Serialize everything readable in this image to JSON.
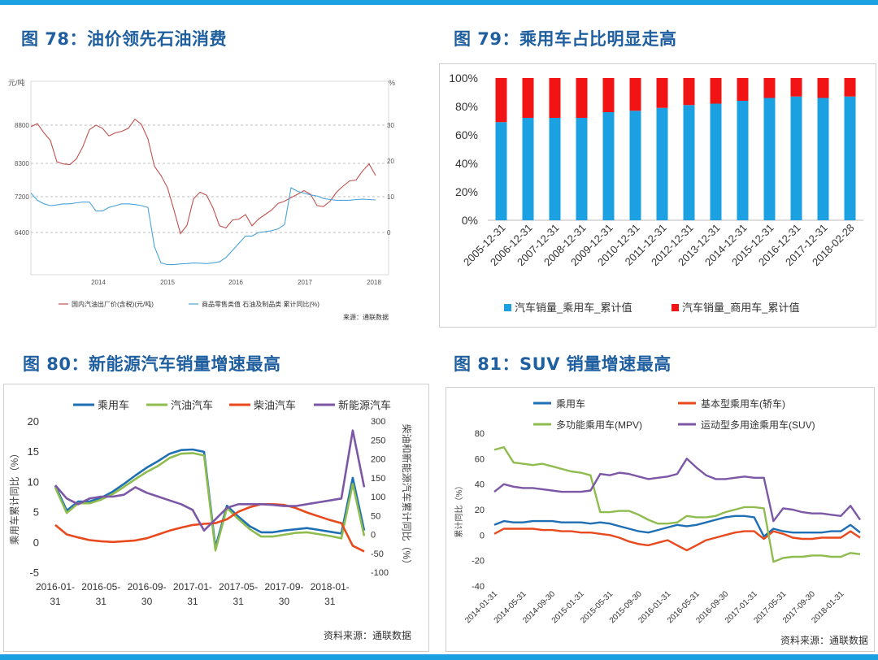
{
  "colors": {
    "accent": "#1ba1e2",
    "title": "#1f5fa0"
  },
  "fig78": {
    "title": "图 78：油价领先石油消费",
    "unit_left": "元/吨",
    "unit_right": "%",
    "source": "来源：通联数据",
    "chart_data": {
      "type": "line",
      "x_ticks": [
        "2014",
        "2015",
        "2016",
        "2017",
        "2018"
      ],
      "y_left_ticks": [
        "8800",
        "8300",
        "7200",
        "6400"
      ],
      "y_right_ticks": [
        "30",
        "20",
        "10",
        "0"
      ],
      "series": [
        {
          "name": "国内汽油出厂价(含税)(元/吨)",
          "color": "#c0504d",
          "axis": "left",
          "values": [
            8780,
            8820,
            8700,
            8600,
            8320,
            8280,
            8260,
            8360,
            8520,
            8740,
            8800,
            8760,
            8660,
            8700,
            8720,
            8760,
            8880,
            8810,
            8620,
            8200,
            7900,
            7500,
            6900,
            6380,
            6560,
            7150,
            7350,
            7250,
            6950,
            6550,
            6500,
            6680,
            6700,
            6800,
            6550,
            6700,
            6800,
            6900,
            7050,
            7100,
            7180,
            7280,
            7400,
            7280,
            7000,
            6980,
            7100,
            7350,
            7550,
            7720,
            7750,
            8050,
            8280,
            7900
          ]
        },
        {
          "name": "商品零售类值 石油及制品类 累计同比(%)",
          "color": "#4aa3d8",
          "axis": "right",
          "values": [
            11,
            9,
            8,
            7.5,
            7.7,
            8,
            8,
            8.3,
            8.5,
            8.5,
            6,
            6,
            7,
            7.5,
            8,
            8,
            7.8,
            7.5,
            7,
            -4,
            -8.5,
            -9,
            -9,
            -8.8,
            -8.7,
            -8.5,
            -8.6,
            -8.7,
            -8.5,
            -8.2,
            -7,
            -5,
            -3,
            -1,
            -1,
            0,
            0.2,
            0.5,
            1,
            2.2,
            12.5,
            11.5,
            11,
            10.5,
            10.2,
            9.5,
            9.2,
            9,
            9,
            9,
            9.2,
            9.3,
            9.2,
            9.1
          ]
        }
      ]
    }
  },
  "fig79": {
    "title": "图 79：乘用车占比明显走高",
    "chart_data": {
      "type": "bar",
      "stacked": true,
      "categories": [
        "2005-12-31",
        "2006-12-31",
        "2007-12-31",
        "2008-12-31",
        "2009-12-31",
        "2010-12-31",
        "2011-12-31",
        "2012-12-31",
        "2013-12-31",
        "2014-12-31",
        "2015-12-31",
        "2016-12-31",
        "2017-12-31",
        "2018-02-28"
      ],
      "y_ticks": [
        "100%",
        "80%",
        "60%",
        "40%",
        "20%",
        "0%"
      ],
      "ylim": [
        0,
        100
      ],
      "series": [
        {
          "name": "汽车销量_乘用车_累计值",
          "color": "#1ba1e2",
          "values": [
            69,
            72,
            72,
            72,
            76,
            77,
            79,
            81,
            82,
            84,
            86,
            87,
            86,
            87
          ]
        },
        {
          "name": "汽车销量_商用车_累计值",
          "color": "#f21414",
          "values": [
            31,
            28,
            28,
            28,
            24,
            23,
            21,
            19,
            18,
            16,
            14,
            13,
            14,
            13
          ]
        }
      ]
    }
  },
  "fig80": {
    "title": "图 80：新能源汽车销量增速最高",
    "ylabel_left": "乘用车累计同比（%）",
    "ylabel_right": "柴油和新能源汽车累计同比（%）",
    "source": "资料来源：通联数据",
    "chart_data": {
      "type": "line",
      "x_ticks": [
        [
          "2016-01-",
          "31"
        ],
        [
          "2016-05-",
          "31"
        ],
        [
          "2016-09-",
          "30"
        ],
        [
          "2017-01-",
          "31"
        ],
        [
          "2017-05-",
          "31"
        ],
        [
          "2017-09-",
          "30"
        ],
        [
          "2018-01-",
          "31"
        ]
      ],
      "y_left_ticks": [
        "20",
        "15",
        "10",
        "5",
        "0",
        "-5"
      ],
      "y_right_ticks": [
        "300",
        "250",
        "200",
        "150",
        "100",
        "50",
        "0",
        "-50",
        "-100"
      ],
      "ylim_left": [
        -5,
        20
      ],
      "ylim_right": [
        -100,
        300
      ],
      "series": [
        {
          "name": "乘用车",
          "color": "#1f6fb5",
          "axis": "left",
          "values": [
            9.3,
            5.2,
            6.7,
            6.7,
            7.3,
            8.3,
            9.6,
            11.0,
            12.3,
            13.4,
            14.6,
            15.2,
            15.3,
            14.9,
            -0.9,
            6.0,
            4.2,
            2.6,
            1.6,
            1.6,
            1.9,
            2.1,
            2.3,
            2.0,
            1.7,
            1.4,
            10.6,
            1.9
          ]
        },
        {
          "name": "汽油汽车",
          "color": "#8fbc4f",
          "axis": "left",
          "values": [
            9.0,
            4.8,
            6.4,
            6.4,
            7.0,
            7.9,
            9.1,
            10.4,
            11.6,
            12.6,
            13.9,
            14.6,
            14.7,
            14.3,
            -1.4,
            5.6,
            3.8,
            2.1,
            0.9,
            0.9,
            1.2,
            1.5,
            1.6,
            1.3,
            1.0,
            0.6,
            9.6,
            1.0
          ]
        },
        {
          "name": "柴油汽车",
          "color": "#e8491d",
          "axis": "right",
          "values": [
            25,
            0,
            -8,
            -15,
            -18,
            -20,
            -18,
            -16,
            -10,
            0,
            10,
            18,
            25,
            28,
            30,
            40,
            60,
            72,
            80,
            80,
            78,
            70,
            58,
            48,
            38,
            30,
            -30,
            -45
          ]
        },
        {
          "name": "新能源汽车",
          "color": "#7b57a6",
          "axis": "right",
          "values": [
            130,
            95,
            80,
            95,
            100,
            100,
            105,
            125,
            110,
            100,
            90,
            80,
            65,
            10,
            40,
            70,
            80,
            80,
            80,
            78,
            75,
            75,
            80,
            85,
            90,
            95,
            275,
            125
          ]
        }
      ]
    }
  },
  "fig81": {
    "title": "图 81：SUV 销量增速最高",
    "ylabel": "累计同比（%）",
    "source": "资料来源：通联数据",
    "chart_data": {
      "type": "line",
      "x_ticks": [
        "2014-01-31",
        "2014-05-31",
        "2014-09-30",
        "2015-01-31",
        "2015-05-31",
        "2015-09-30",
        "2016-01-31",
        "2016-05-31",
        "2016-09-30",
        "2017-01-31",
        "2017-05-31",
        "2017-09-30",
        "2018-01-31"
      ],
      "y_ticks": [
        "80",
        "60",
        "40",
        "20",
        "0",
        "-20",
        "-40"
      ],
      "ylim": [
        -40,
        80
      ],
      "series": [
        {
          "name": "乘用车",
          "color": "#1f6fb5",
          "values": [
            8,
            11,
            10,
            10,
            11,
            11,
            11,
            10,
            10,
            10,
            9,
            10,
            9,
            7,
            5,
            3,
            2,
            4,
            6,
            8,
            7,
            8,
            10,
            12,
            14,
            15,
            15,
            14,
            -1,
            5,
            3,
            2,
            2,
            2,
            2,
            3,
            3,
            8,
            2
          ]
        },
        {
          "name": "基本型乘用车(轿车)",
          "color": "#e8491d",
          "values": [
            1,
            5,
            5,
            5,
            5,
            4,
            4,
            3,
            3,
            2,
            2,
            1,
            0,
            -2,
            -5,
            -7,
            -8,
            -6,
            -4,
            -8,
            -12,
            -8,
            -4,
            -2,
            0,
            2,
            3,
            3,
            -3,
            3,
            1,
            -2,
            -3,
            -3,
            -2,
            -2,
            -2,
            3,
            -2
          ]
        },
        {
          "name": "多功能乘用车(MPV)",
          "color": "#8fbc4f",
          "values": [
            67,
            69,
            57,
            56,
            55,
            56,
            54,
            52,
            50,
            49,
            47,
            18,
            18,
            19,
            19,
            16,
            12,
            9,
            9,
            10,
            15,
            14,
            14,
            15,
            18,
            20,
            22,
            22,
            21,
            -21,
            -18,
            -17,
            -17,
            -16,
            -16,
            -17,
            -17,
            -14,
            -15
          ]
        },
        {
          "name": "运动型多用途乘用车(SUV)",
          "color": "#7b57a6",
          "values": [
            34,
            40,
            38,
            37,
            37,
            36,
            35,
            34,
            34,
            34,
            35,
            48,
            47,
            49,
            48,
            46,
            44,
            45,
            46,
            48,
            60,
            53,
            47,
            44,
            44,
            45,
            46,
            45,
            45,
            11,
            21,
            20,
            18,
            17,
            17,
            16,
            15,
            23,
            12
          ]
        }
      ]
    }
  }
}
